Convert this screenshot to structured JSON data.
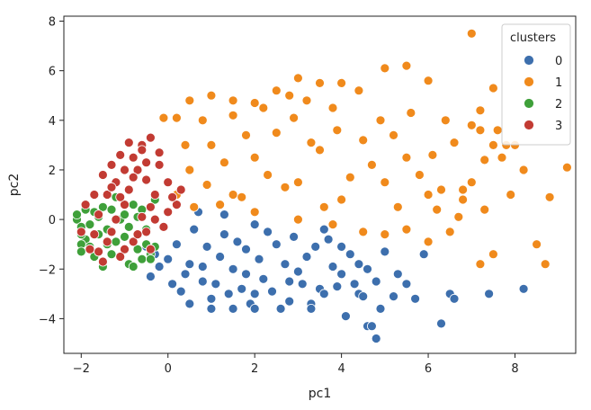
{
  "chart_data": {
    "type": "scatter",
    "title": "",
    "xlabel": "pc1",
    "ylabel": "pc2",
    "xlim": [
      -2.4,
      9.4
    ],
    "ylim": [
      -5.4,
      8.2
    ],
    "xticks": [
      -2,
      0,
      2,
      4,
      6,
      8
    ],
    "yticks": [
      -4,
      -2,
      0,
      2,
      4,
      6,
      8
    ],
    "grid": false,
    "legend": {
      "title": "clusters",
      "placement": "top-right"
    },
    "series": [
      {
        "name": "0",
        "color": "#3d6fad",
        "points": [
          [
            0.2,
            -1.0
          ],
          [
            0.5,
            -1.8
          ],
          [
            0.8,
            -2.5
          ],
          [
            1.0,
            -3.2
          ],
          [
            1.3,
            -0.6
          ],
          [
            1.5,
            -2.0
          ],
          [
            1.8,
            -1.2
          ],
          [
            2.0,
            -3.0
          ],
          [
            2.2,
            -2.4
          ],
          [
            2.5,
            -1.0
          ],
          [
            2.8,
            -3.3
          ],
          [
            3.0,
            -2.1
          ],
          [
            3.2,
            -1.5
          ],
          [
            3.5,
            -2.8
          ],
          [
            3.7,
            -0.8
          ],
          [
            4.0,
            -2.2
          ],
          [
            4.2,
            -1.4
          ],
          [
            4.4,
            -3.0
          ],
          [
            0.3,
            -2.9
          ],
          [
            0.6,
            -0.4
          ],
          [
            1.2,
            -1.5
          ],
          [
            1.7,
            -2.8
          ],
          [
            2.3,
            -0.5
          ],
          [
            2.7,
            -1.8
          ],
          [
            3.3,
            -3.4
          ],
          [
            3.8,
            -1.9
          ],
          [
            4.3,
            -2.6
          ],
          [
            0.9,
            -1.1
          ],
          [
            1.9,
            -3.4
          ],
          [
            2.9,
            -0.7
          ],
          [
            -0.3,
            -1.4
          ],
          [
            -0.5,
            -1.1
          ],
          [
            -0.2,
            -1.9
          ],
          [
            4.6,
            -2.0
          ],
          [
            5.0,
            -1.3
          ],
          [
            4.8,
            -2.5
          ],
          [
            5.2,
            -3.1
          ],
          [
            5.5,
            -2.6
          ],
          [
            5.7,
            -3.2
          ],
          [
            5.9,
            -1.4
          ],
          [
            4.9,
            -3.6
          ],
          [
            5.3,
            -2.2
          ],
          [
            4.6,
            -4.3
          ],
          [
            4.7,
            -4.3
          ],
          [
            4.8,
            -4.8
          ],
          [
            6.3,
            -4.2
          ],
          [
            6.5,
            -3.0
          ],
          [
            6.6,
            -3.2
          ],
          [
            7.4,
            -3.0
          ],
          [
            8.2,
            -2.8
          ],
          [
            4.1,
            -3.9
          ],
          [
            3.3,
            -3.6
          ],
          [
            1.0,
            -3.6
          ],
          [
            0.5,
            -3.4
          ],
          [
            1.5,
            -3.6
          ],
          [
            2.0,
            -3.6
          ],
          [
            1.3,
            0.2
          ],
          [
            0.7,
            0.3
          ],
          [
            2.0,
            -0.2
          ],
          [
            3.6,
            -0.4
          ],
          [
            0.4,
            -2.2
          ],
          [
            1.1,
            -2.6
          ],
          [
            1.6,
            -0.9
          ],
          [
            2.4,
            -2.9
          ],
          [
            3.1,
            -2.6
          ],
          [
            3.9,
            -2.7
          ],
          [
            0.0,
            -1.6
          ],
          [
            -0.4,
            -2.3
          ],
          [
            4.5,
            -3.1
          ],
          [
            4.0,
            -1.1
          ],
          [
            2.6,
            -3.6
          ],
          [
            1.4,
            -3.0
          ],
          [
            0.1,
            -2.6
          ],
          [
            3.4,
            -1.1
          ],
          [
            2.1,
            -1.6
          ],
          [
            0.8,
            -1.9
          ],
          [
            1.8,
            -2.2
          ],
          [
            2.8,
            -2.5
          ],
          [
            3.6,
            -3.0
          ],
          [
            4.4,
            -1.8
          ]
        ]
      },
      {
        "name": "1",
        "color": "#f08a1c",
        "points": [
          [
            0.5,
            2.0
          ],
          [
            1.0,
            3.0
          ],
          [
            1.5,
            1.0
          ],
          [
            2.0,
            2.5
          ],
          [
            2.5,
            3.5
          ],
          [
            3.0,
            1.5
          ],
          [
            3.5,
            2.8
          ],
          [
            4.0,
            0.8
          ],
          [
            4.5,
            3.2
          ],
          [
            5.0,
            1.5
          ],
          [
            5.5,
            2.5
          ],
          [
            6.0,
            1.0
          ],
          [
            0.8,
            4.0
          ],
          [
            1.5,
            4.2
          ],
          [
            2.2,
            4.5
          ],
          [
            2.8,
            5.0
          ],
          [
            3.2,
            4.8
          ],
          [
            3.8,
            4.5
          ],
          [
            4.4,
            5.2
          ],
          [
            4.0,
            5.5
          ],
          [
            5.0,
            6.1
          ],
          [
            5.5,
            6.2
          ],
          [
            6.0,
            5.6
          ],
          [
            0.5,
            4.8
          ],
          [
            1.0,
            5.0
          ],
          [
            1.5,
            4.8
          ],
          [
            2.0,
            4.7
          ],
          [
            2.5,
            5.2
          ],
          [
            3.0,
            5.7
          ],
          [
            3.5,
            5.5
          ],
          [
            0.2,
            4.1
          ],
          [
            -0.1,
            4.1
          ],
          [
            0.2,
            1.0
          ],
          [
            0.6,
            0.5
          ],
          [
            1.2,
            0.6
          ],
          [
            2.0,
            0.3
          ],
          [
            3.0,
            0.0
          ],
          [
            3.8,
            -0.2
          ],
          [
            4.5,
            -0.5
          ],
          [
            5.0,
            -0.6
          ],
          [
            5.5,
            -0.4
          ],
          [
            6.0,
            -0.9
          ],
          [
            6.5,
            -0.5
          ],
          [
            6.3,
            1.2
          ],
          [
            6.8,
            0.8
          ],
          [
            7.0,
            1.5
          ],
          [
            7.2,
            4.4
          ],
          [
            7.0,
            3.8
          ],
          [
            7.2,
            3.6
          ],
          [
            7.5,
            5.3
          ],
          [
            7.6,
            3.6
          ],
          [
            7.8,
            3.0
          ],
          [
            7.7,
            2.5
          ],
          [
            7.3,
            2.4
          ],
          [
            7.5,
            -1.4
          ],
          [
            7.2,
            -1.8
          ],
          [
            8.0,
            3.0
          ],
          [
            7.0,
            7.5
          ],
          [
            8.5,
            -1.0
          ],
          [
            8.7,
            -1.8
          ],
          [
            8.8,
            0.9
          ],
          [
            9.2,
            2.1
          ],
          [
            7.3,
            0.4
          ],
          [
            6.7,
            0.1
          ],
          [
            6.2,
            0.4
          ],
          [
            6.8,
            1.2
          ],
          [
            5.8,
            1.8
          ],
          [
            4.7,
            2.2
          ],
          [
            3.9,
            3.6
          ],
          [
            2.7,
            1.3
          ],
          [
            1.8,
            3.4
          ],
          [
            0.9,
            1.4
          ],
          [
            1.3,
            2.3
          ],
          [
            2.3,
            1.8
          ],
          [
            3.3,
            3.1
          ],
          [
            4.2,
            1.7
          ],
          [
            5.2,
            3.4
          ],
          [
            5.6,
            4.3
          ],
          [
            6.1,
            2.6
          ],
          [
            6.6,
            3.1
          ],
          [
            0.4,
            3.0
          ],
          [
            1.7,
            0.9
          ],
          [
            2.9,
            4.1
          ],
          [
            4.9,
            4.0
          ],
          [
            3.6,
            0.5
          ],
          [
            5.3,
            0.5
          ],
          [
            6.4,
            4.0
          ],
          [
            7.5,
            3.0
          ],
          [
            8.2,
            2.0
          ],
          [
            7.9,
            1.0
          ]
        ]
      },
      {
        "name": "2",
        "color": "#3fa03a",
        "points": [
          [
            -2.1,
            0.0
          ],
          [
            -2.0,
            -0.3
          ],
          [
            -1.9,
            -0.8
          ],
          [
            -2.0,
            -1.0
          ],
          [
            -1.8,
            -0.2
          ],
          [
            -1.7,
            0.3
          ],
          [
            -1.6,
            -0.6
          ],
          [
            -1.5,
            0.5
          ],
          [
            -1.4,
            -1.0
          ],
          [
            -1.3,
            -1.4
          ],
          [
            -1.2,
            0.9
          ],
          [
            -1.1,
            0.0
          ],
          [
            -1.0,
            -0.7
          ],
          [
            -0.9,
            -1.8
          ],
          [
            -0.8,
            0.6
          ],
          [
            -0.7,
            -1.2
          ],
          [
            -0.6,
            -1.6
          ],
          [
            -0.5,
            -0.4
          ],
          [
            -0.4,
            -1.4
          ],
          [
            -0.3,
            0.8
          ],
          [
            -2.1,
            0.2
          ],
          [
            -2.0,
            -1.3
          ],
          [
            -1.7,
            -1.5
          ],
          [
            -1.5,
            -1.9
          ],
          [
            -0.8,
            -1.9
          ],
          [
            -0.4,
            -1.6
          ],
          [
            -1.9,
            0.4
          ],
          [
            -1.3,
            0.4
          ],
          [
            -1.6,
            0.1
          ],
          [
            -1.0,
            0.2
          ],
          [
            -0.6,
            0.4
          ],
          [
            -1.8,
            -1.1
          ],
          [
            -1.2,
            -0.9
          ],
          [
            -0.9,
            -0.3
          ],
          [
            -0.5,
            -1.0
          ],
          [
            -2.0,
            -0.6
          ],
          [
            -1.4,
            -0.4
          ],
          [
            -1.1,
            -1.5
          ],
          [
            -0.7,
            0.1
          ],
          [
            -0.3,
            -1.1
          ]
        ]
      },
      {
        "name": "3",
        "color": "#c23b33",
        "points": [
          [
            -1.6,
            0.2
          ],
          [
            -1.4,
            1.0
          ],
          [
            -1.2,
            1.5
          ],
          [
            -1.0,
            2.0
          ],
          [
            -0.8,
            2.5
          ],
          [
            -0.6,
            3.0
          ],
          [
            -0.4,
            3.3
          ],
          [
            -0.2,
            2.2
          ],
          [
            0.0,
            1.5
          ],
          [
            0.2,
            0.6
          ],
          [
            -0.3,
            0.0
          ],
          [
            -0.5,
            -0.5
          ],
          [
            -0.8,
            -0.9
          ],
          [
            -1.0,
            -1.2
          ],
          [
            -1.3,
            -0.5
          ],
          [
            -1.5,
            -1.7
          ],
          [
            -1.8,
            -1.2
          ],
          [
            -2.0,
            -0.5
          ],
          [
            -1.9,
            0.6
          ],
          [
            -1.7,
            1.0
          ],
          [
            -1.1,
            2.6
          ],
          [
            -0.9,
            3.1
          ],
          [
            -0.7,
            2.0
          ],
          [
            -0.5,
            1.6
          ],
          [
            -0.3,
            1.0
          ],
          [
            0.1,
            0.9
          ],
          [
            -0.1,
            -0.3
          ],
          [
            -0.6,
            0.1
          ],
          [
            -1.0,
            0.6
          ],
          [
            -1.3,
            1.3
          ],
          [
            -1.5,
            1.8
          ],
          [
            -0.9,
            1.2
          ],
          [
            -0.2,
            2.7
          ],
          [
            0.3,
            1.2
          ],
          [
            -0.4,
            -1.2
          ],
          [
            -1.1,
            -1.5
          ],
          [
            -1.6,
            -1.3
          ],
          [
            -0.7,
            -0.6
          ],
          [
            -1.2,
            0.0
          ],
          [
            -0.5,
            2.3
          ],
          [
            -0.8,
            1.7
          ],
          [
            -1.4,
            -0.9
          ],
          [
            -1.7,
            -0.6
          ],
          [
            -0.4,
            0.5
          ],
          [
            0.0,
            0.3
          ],
          [
            -1.1,
            0.9
          ],
          [
            -0.6,
            2.8
          ],
          [
            -1.3,
            2.2
          ]
        ]
      }
    ]
  }
}
